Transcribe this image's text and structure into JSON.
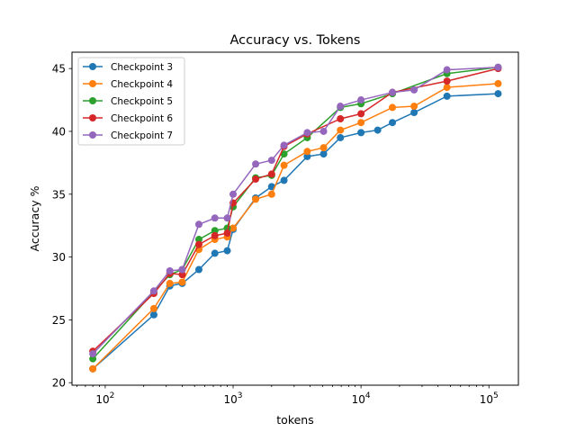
{
  "chart_data": {
    "type": "line",
    "title": "Accuracy vs. Tokens",
    "xlabel": "tokens",
    "ylabel": "Accuracy %",
    "xscale": "log",
    "xlim": [
      55,
      170000
    ],
    "ylim": [
      19.8,
      46.3
    ],
    "x_ticks": [
      {
        "value": 100,
        "base": "10",
        "exp": "2"
      },
      {
        "value": 1000,
        "base": "10",
        "exp": "3"
      },
      {
        "value": 10000,
        "base": "10",
        "exp": "4"
      },
      {
        "value": 100000,
        "base": "10",
        "exp": "5"
      }
    ],
    "y_ticks": [
      20,
      25,
      30,
      35,
      40,
      45
    ],
    "grid": false,
    "legend_position": "top-left",
    "series": [
      {
        "name": "Checkpoint 3",
        "color": "#1f77b4",
        "points": [
          [
            80,
            21.1
          ],
          [
            240,
            25.4
          ],
          [
            320,
            27.7
          ],
          [
            400,
            27.9
          ],
          [
            540,
            29.0
          ],
          [
            720,
            30.3
          ],
          [
            900,
            30.5
          ],
          [
            1000,
            32.2
          ],
          [
            1500,
            34.7
          ],
          [
            2000,
            35.6
          ],
          [
            2500,
            36.1
          ],
          [
            3800,
            38.0
          ],
          [
            5100,
            38.2
          ],
          [
            6900,
            39.5
          ],
          [
            10000,
            39.9
          ],
          [
            13500,
            40.1
          ],
          [
            17600,
            40.7
          ],
          [
            26000,
            41.5
          ],
          [
            47000,
            42.8
          ],
          [
            118000,
            43.0
          ]
        ]
      },
      {
        "name": "Checkpoint 4",
        "color": "#ff7f0e",
        "points": [
          [
            80,
            21.1
          ],
          [
            240,
            25.9
          ],
          [
            320,
            27.9
          ],
          [
            400,
            28.0
          ],
          [
            540,
            30.6
          ],
          [
            720,
            31.4
          ],
          [
            900,
            31.6
          ],
          [
            1000,
            32.3
          ],
          [
            1500,
            34.6
          ],
          [
            2000,
            35.0
          ],
          [
            2500,
            37.3
          ],
          [
            3800,
            38.4
          ],
          [
            5100,
            38.7
          ],
          [
            6900,
            40.1
          ],
          [
            10000,
            40.7
          ],
          [
            17600,
            41.9
          ],
          [
            26000,
            42.0
          ],
          [
            47000,
            43.5
          ],
          [
            118000,
            43.8
          ]
        ]
      },
      {
        "name": "Checkpoint 5",
        "color": "#2ca02c",
        "points": [
          [
            80,
            21.9
          ],
          [
            240,
            27.2
          ],
          [
            320,
            28.6
          ],
          [
            400,
            29.0
          ],
          [
            540,
            31.4
          ],
          [
            720,
            32.1
          ],
          [
            900,
            32.3
          ],
          [
            1000,
            34.0
          ],
          [
            1500,
            36.3
          ],
          [
            2000,
            36.5
          ],
          [
            2500,
            38.2
          ],
          [
            3800,
            39.5
          ],
          [
            6900,
            41.9
          ],
          [
            10000,
            42.2
          ],
          [
            17600,
            43.0
          ],
          [
            47000,
            44.6
          ],
          [
            118000,
            45.1
          ]
        ]
      },
      {
        "name": "Checkpoint 6",
        "color": "#d62728",
        "points": [
          [
            80,
            22.5
          ],
          [
            240,
            27.1
          ],
          [
            320,
            28.7
          ],
          [
            400,
            28.6
          ],
          [
            540,
            31.0
          ],
          [
            720,
            31.7
          ],
          [
            900,
            31.9
          ],
          [
            1000,
            34.3
          ],
          [
            1500,
            36.2
          ],
          [
            2000,
            36.6
          ],
          [
            2500,
            38.8
          ],
          [
            3800,
            39.8
          ],
          [
            6900,
            41.0
          ],
          [
            10000,
            41.4
          ],
          [
            17600,
            43.1
          ],
          [
            47000,
            44.0
          ],
          [
            118000,
            45.0
          ]
        ]
      },
      {
        "name": "Checkpoint 7",
        "color": "#9467bd",
        "points": [
          [
            80,
            22.3
          ],
          [
            240,
            27.3
          ],
          [
            320,
            28.9
          ],
          [
            400,
            29.0
          ],
          [
            540,
            32.6
          ],
          [
            720,
            33.1
          ],
          [
            900,
            33.1
          ],
          [
            1000,
            35.0
          ],
          [
            1500,
            37.4
          ],
          [
            2000,
            37.7
          ],
          [
            2500,
            38.9
          ],
          [
            3800,
            39.9
          ],
          [
            5100,
            40.0
          ],
          [
            6900,
            42.0
          ],
          [
            10000,
            42.5
          ],
          [
            17600,
            43.1
          ],
          [
            26000,
            43.3
          ],
          [
            47000,
            44.9
          ],
          [
            118000,
            45.1
          ]
        ]
      }
    ]
  }
}
